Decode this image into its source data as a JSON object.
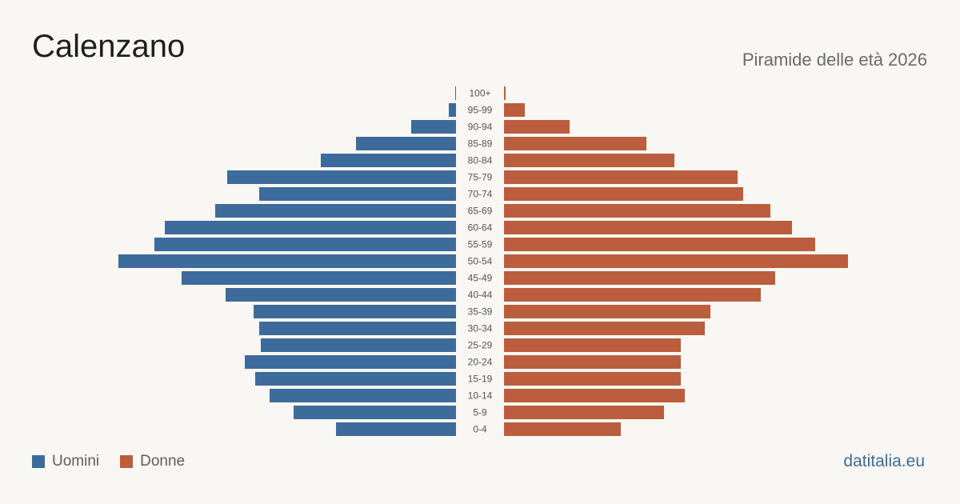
{
  "header": {
    "title": "Calenzano",
    "subtitle": "Piramide delle età 2026"
  },
  "legend": {
    "men_label": "Uomini",
    "women_label": "Donne"
  },
  "brand": "datitalia.eu",
  "colors": {
    "men": "#3d6b9c",
    "women": "#bb5e3d",
    "background": "#f9f7f3"
  },
  "chart_data": {
    "type": "bar",
    "orientation": "horizontal-pyramid",
    "categories": [
      "100+",
      "95-99",
      "90-94",
      "85-89",
      "80-84",
      "75-79",
      "70-74",
      "65-69",
      "60-64",
      "55-59",
      "50-54",
      "45-49",
      "40-44",
      "35-39",
      "30-34",
      "25-29",
      "20-24",
      "15-19",
      "10-14",
      "5-9",
      "0-4"
    ],
    "series": [
      {
        "name": "Uomini",
        "values": [
          1,
          9,
          56,
          125,
          169,
          286,
          246,
          301,
          364,
          377,
          422,
          343,
          288,
          253,
          246,
          244,
          264,
          251,
          233,
          203,
          150
        ]
      },
      {
        "name": "Donne",
        "values": [
          2,
          26,
          82,
          178,
          213,
          292,
          299,
          333,
          360,
          389,
          430,
          339,
          321,
          258,
          251,
          221,
          221,
          221,
          226,
          200,
          146
        ]
      }
    ],
    "xlabel": "",
    "ylabel": "",
    "grid": false,
    "legend_position": "bottom-left"
  }
}
